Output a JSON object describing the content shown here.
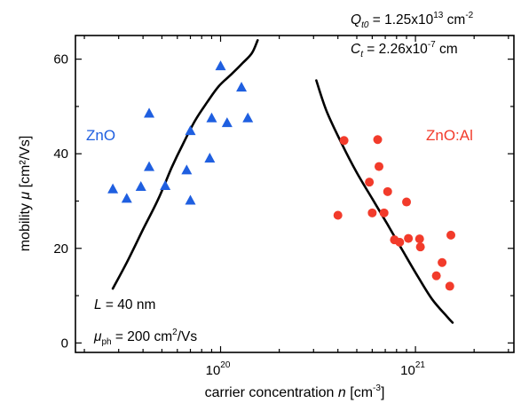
{
  "chart_data": {
    "type": "scatter",
    "xscale": "log",
    "xlim": [
      1.8e+19,
      3.2e+21
    ],
    "ylim": [
      -2,
      65
    ],
    "grid": false,
    "xlabel": {
      "main": "carrier concentration  ",
      "var": "n",
      "unit_pre": " [cm",
      "unit_sup": "-3",
      "unit_post": "]"
    },
    "ylabel": {
      "main": "mobility ",
      "var": "μ",
      "unit": " [cm²/Vs]"
    },
    "xticks": [
      {
        "value": 1e+20,
        "base": "10",
        "exp": "20"
      },
      {
        "value": 1e+21,
        "base": "10",
        "exp": "21"
      }
    ],
    "yticks": [
      {
        "value": 0,
        "label": "0"
      },
      {
        "value": 20,
        "label": "20"
      },
      {
        "value": 40,
        "label": "40"
      },
      {
        "value": 60,
        "label": "60"
      }
    ],
    "series": [
      {
        "name": "ZnO",
        "marker": "triangle",
        "color": "#1f5fe0",
        "points": [
          [
            2.8e+19,
            32.5
          ],
          [
            3.3e+19,
            30.5
          ],
          [
            3.9e+19,
            33
          ],
          [
            4.3e+19,
            48.5
          ],
          [
            4.3e+19,
            37.2
          ],
          [
            5.2e+19,
            33.2
          ],
          [
            6.7e+19,
            36.5
          ],
          [
            7e+19,
            44.8
          ],
          [
            7e+19,
            30.1
          ],
          [
            8.8e+19,
            39
          ],
          [
            9e+19,
            47.5
          ],
          [
            1e+20,
            58.5
          ],
          [
            1.08e+20,
            46.5
          ],
          [
            1.28e+20,
            54
          ],
          [
            1.38e+20,
            47.5
          ]
        ]
      },
      {
        "name": "ZnO:Al",
        "marker": "circle",
        "color": "#f23b2b",
        "points": [
          [
            4e+20,
            27
          ],
          [
            4.3e+20,
            42.8
          ],
          [
            5.8e+20,
            34
          ],
          [
            6e+20,
            27.5
          ],
          [
            6.4e+20,
            43
          ],
          [
            6.5e+20,
            37.3
          ],
          [
            6.9e+20,
            27.5
          ],
          [
            7.2e+20,
            32
          ],
          [
            7.8e+20,
            21.8
          ],
          [
            8.3e+20,
            21.3
          ],
          [
            9e+20,
            29.8
          ],
          [
            9.2e+20,
            22.1
          ],
          [
            1.05e+21,
            22
          ],
          [
            1.06e+21,
            20.3
          ],
          [
            1.28e+21,
            14.2
          ],
          [
            1.37e+21,
            17
          ],
          [
            1.5e+21,
            12
          ],
          [
            1.52e+21,
            22.8
          ]
        ]
      },
      {
        "name": "",
        "type": "line",
        "color": "#000000",
        "points": [
          [
            2.8e+19,
            11.5
          ],
          [
            3.3e+19,
            17
          ],
          [
            4e+19,
            24
          ],
          [
            4.8e+19,
            30.5
          ],
          [
            5.6e+19,
            37
          ],
          [
            6.4e+19,
            42
          ],
          [
            7.4e+19,
            47
          ],
          [
            8.5e+19,
            50.8
          ],
          [
            9.8e+19,
            54.3
          ],
          [
            1.15e+20,
            57
          ],
          [
            1.3e+20,
            59.2
          ],
          [
            1.45e+20,
            61.3
          ],
          [
            1.55e+20,
            64
          ]
        ]
      },
      {
        "name": "",
        "type": "line",
        "color": "#000000",
        "points": [
          [
            3.1e+20,
            55.5
          ],
          [
            3.5e+20,
            49
          ],
          [
            4.2e+20,
            42
          ],
          [
            5e+20,
            36
          ],
          [
            6e+20,
            30.5
          ],
          [
            7.2e+20,
            25
          ],
          [
            8.6e+20,
            19.5
          ],
          [
            1.03e+21,
            14
          ],
          [
            1.22e+21,
            9.2
          ],
          [
            1.45e+21,
            5.6
          ],
          [
            1.55e+21,
            4.3
          ]
        ]
      }
    ],
    "labels": {
      "zno": "ZnO",
      "znoal": "ZnO:Al",
      "zno_color": "#1f5fe0",
      "znoal_color": "#f23b2b"
    },
    "annotations": {
      "L": {
        "var": "L",
        "text": " = 40 nm"
      },
      "mu_ph": {
        "var": "μ",
        "sub": "ph",
        "pre": " = 200 cm",
        "sup": "2",
        "post": "/Vs"
      },
      "Qt0": {
        "var": "Q",
        "sub": "t0",
        "pre": " = 1.25x10",
        "sup": "13",
        "post": " cm",
        "sup2": "-2"
      },
      "Ct": {
        "var": "C",
        "sub": "t",
        "pre": " = 2.26x10",
        "sup": "-7",
        "post": " cm"
      }
    }
  }
}
